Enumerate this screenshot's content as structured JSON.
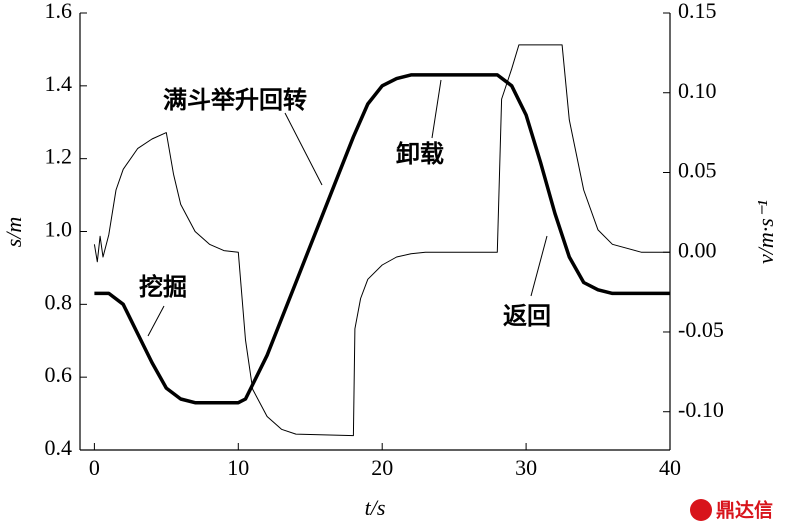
{
  "chart_data": {
    "type": "line",
    "xlabel": "t/s",
    "ylabel": "s/m",
    "y2label": "v/m·s⁻¹",
    "annotations": [
      "满斗举升回转",
      "卸载",
      "挖掘",
      "返回"
    ],
    "watermark": "鼎达信",
    "xlim": [
      -1,
      40
    ],
    "xticks": [
      0,
      10,
      20,
      30,
      40
    ],
    "ylim": [
      0.4,
      1.6
    ],
    "yticks": [
      0.4,
      0.6,
      0.8,
      {
        "value": 1.0,
        "label": "1.0"
      },
      1.2,
      1.4,
      1.6
    ],
    "y2lim": [
      -0.124,
      0.15
    ],
    "y2ticks": [
      {
        "value": -0.1,
        "label": "-0.10"
      },
      -0.05,
      {
        "value": 0,
        "label": "0.00"
      },
      0.05,
      {
        "value": 0.1,
        "label": "0.10"
      },
      0.15
    ],
    "series": [
      {
        "name": "s",
        "color": "#000000",
        "width": 3.5,
        "x": [
          0,
          1,
          2,
          3,
          4,
          5,
          6,
          7,
          8,
          9,
          10,
          10.5,
          11,
          12,
          13,
          14,
          15,
          16,
          17,
          18,
          19,
          20,
          21,
          22,
          23,
          28,
          29,
          30,
          31,
          32,
          33,
          34,
          35,
          36,
          40
        ],
        "values": [
          0.83,
          0.83,
          0.8,
          0.72,
          0.64,
          0.57,
          0.54,
          0.53,
          0.53,
          0.53,
          0.53,
          0.54,
          0.58,
          0.66,
          0.76,
          0.86,
          0.96,
          1.06,
          1.16,
          1.26,
          1.35,
          1.4,
          1.42,
          1.43,
          1.43,
          1.43,
          1.4,
          1.32,
          1.19,
          1.05,
          0.93,
          0.86,
          0.84,
          0.83,
          0.83
        ]
      },
      {
        "name": "v",
        "color": "#000000",
        "width": 1,
        "axis": "y2",
        "x": [
          0,
          0.2,
          0.4,
          0.6,
          1,
          1.5,
          2,
          3,
          4,
          5,
          5.5,
          6,
          7,
          8,
          9,
          10,
          10.5,
          11,
          12,
          13,
          14,
          18,
          18.1,
          18.5,
          19,
          20,
          21,
          22,
          23,
          28,
          28.3,
          29,
          29.5,
          31,
          32.5,
          33,
          34,
          35,
          36,
          38,
          40
        ],
        "values": [
          0.005,
          -0.006,
          0.01,
          -0.003,
          0.011,
          0.039,
          0.052,
          0.065,
          0.071,
          0.075,
          0.049,
          0.03,
          0.013,
          0.005,
          0.001,
          0,
          -0.055,
          -0.086,
          -0.103,
          -0.111,
          -0.114,
          -0.115,
          -0.048,
          -0.029,
          -0.017,
          -0.008,
          -0.003,
          -0.001,
          0,
          0,
          0.096,
          0.115,
          0.13,
          0.13,
          0.13,
          0.083,
          0.039,
          0.014,
          0.005,
          0,
          0
        ]
      }
    ]
  }
}
